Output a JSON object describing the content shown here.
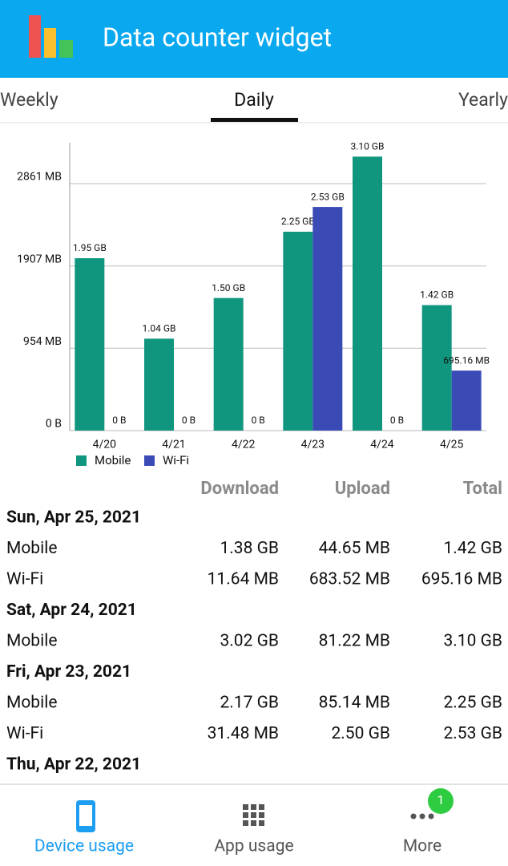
{
  "header": {
    "title": "Data counter widget"
  },
  "tabs": [
    "Weekly",
    "Daily",
    "Yearly"
  ],
  "chart_data": {
    "type": "bar",
    "categories": [
      "4/20",
      "4/21",
      "4/22",
      "4/23",
      "4/24",
      "4/25"
    ],
    "series": [
      {
        "name": "Mobile",
        "color": "#10967f",
        "values": [
          1997,
          1065,
          1536,
          2304,
          3174,
          1454
        ],
        "value_labels": [
          "1.95 GB",
          "1.04 GB",
          "1.50 GB",
          "2.25 GB",
          "3.10 GB",
          "1.42 GB"
        ]
      },
      {
        "name": "Wi-Fi",
        "color": "#3a4bb5",
        "values": [
          0,
          0,
          0,
          2591,
          0,
          695.16
        ],
        "value_labels": [
          "0 B",
          "0 B",
          "0 B",
          "2.53 GB",
          "0 B",
          "695.16 MB"
        ]
      }
    ],
    "ylim": [
      0,
      3335
    ],
    "yticks": [
      {
        "value": 0,
        "label": "0 B"
      },
      {
        "value": 954,
        "label": "954 MB"
      },
      {
        "value": 1907,
        "label": "1907 MB"
      },
      {
        "value": 2861,
        "label": "2861 MB"
      }
    ],
    "grid": true,
    "legend": "bottom-left"
  },
  "table": {
    "columns": [
      "Download",
      "Upload",
      "Total"
    ],
    "days": [
      {
        "date": "Sun, Apr 25, 2021",
        "rows": [
          [
            "Mobile",
            "1.38 GB",
            "44.65 MB",
            "1.42 GB"
          ],
          [
            "Wi-Fi",
            "11.64 MB",
            "683.52 MB",
            "695.16 MB"
          ]
        ]
      },
      {
        "date": "Sat, Apr 24, 2021",
        "rows": [
          [
            "Mobile",
            "3.02 GB",
            "81.22 MB",
            "3.10 GB"
          ]
        ]
      },
      {
        "date": "Fri, Apr 23, 2021",
        "rows": [
          [
            "Mobile",
            "2.17 GB",
            "85.14 MB",
            "2.25 GB"
          ],
          [
            "Wi-Fi",
            "31.48 MB",
            "2.50 GB",
            "2.53 GB"
          ]
        ]
      },
      {
        "date": "Thu, Apr 22, 2021",
        "rows": []
      }
    ]
  },
  "nav": [
    {
      "label": "Device usage"
    },
    {
      "label": "App usage"
    },
    {
      "label": "More",
      "badge": 1
    }
  ]
}
